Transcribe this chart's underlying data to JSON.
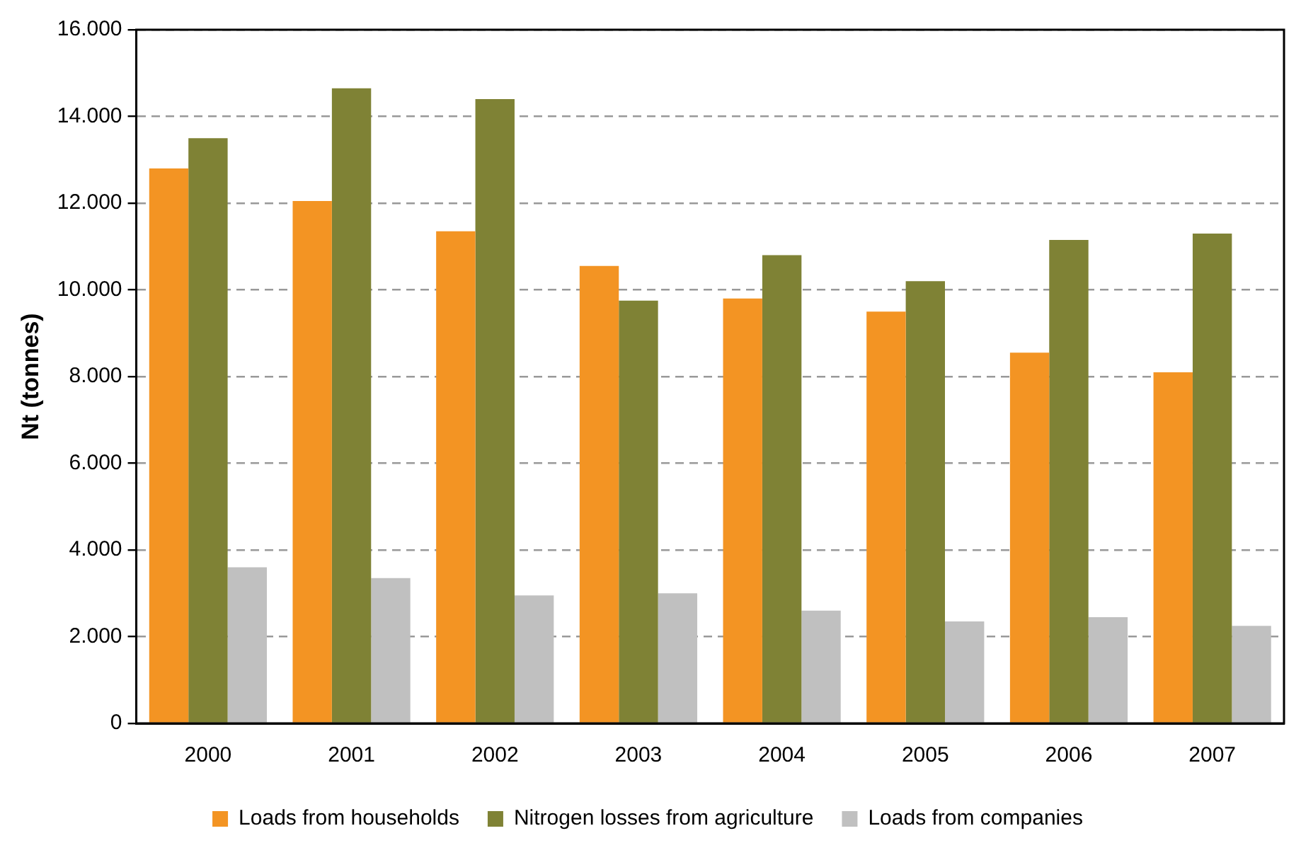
{
  "chart_data": {
    "type": "bar",
    "ylabel": "Nt (tonnes)",
    "categories": [
      "2000",
      "2001",
      "2002",
      "2003",
      "2004",
      "2005",
      "2006",
      "2007"
    ],
    "series": [
      {
        "name": "Loads from households",
        "color": "#f39423",
        "values": [
          12800,
          12050,
          11350,
          10550,
          9800,
          9500,
          8550,
          8100
        ]
      },
      {
        "name": "Nitrogen losses from agriculture",
        "color": "#7f8235",
        "values": [
          13500,
          14650,
          14400,
          9750,
          10800,
          10200,
          11150,
          11300
        ]
      },
      {
        "name": "Loads from companies",
        "color": "#c0c0c0",
        "values": [
          3600,
          3350,
          2950,
          3000,
          2600,
          2350,
          2450,
          2250
        ]
      }
    ],
    "ylim": [
      0,
      16000
    ],
    "yticks": [
      {
        "value": 0,
        "label": "0"
      },
      {
        "value": 2000,
        "label": "2.000"
      },
      {
        "value": 4000,
        "label": "4.000"
      },
      {
        "value": 6000,
        "label": "6.000"
      },
      {
        "value": 8000,
        "label": "8.000"
      },
      {
        "value": 10000,
        "label": "10.000"
      },
      {
        "value": 12000,
        "label": "12.000"
      },
      {
        "value": 14000,
        "label": "14.000"
      },
      {
        "value": 16000,
        "label": "16.000"
      }
    ],
    "grid": "y",
    "legend": "bottom"
  }
}
